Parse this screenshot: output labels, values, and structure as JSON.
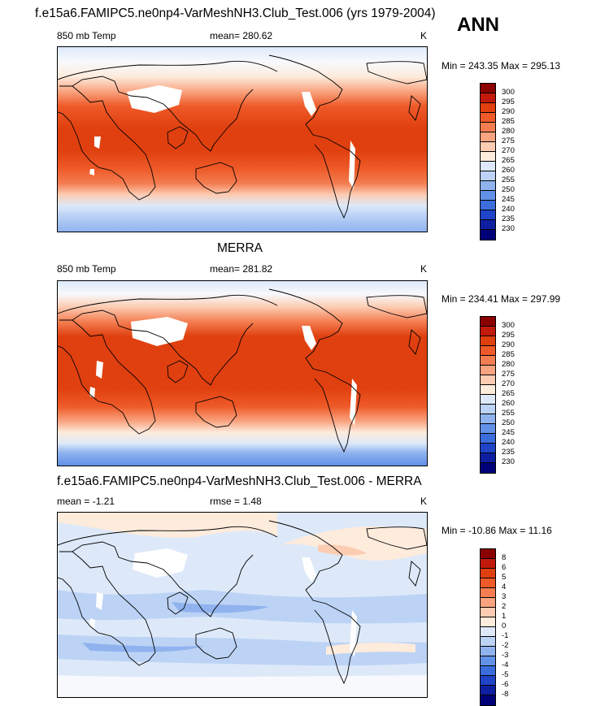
{
  "header": {
    "title": "f.e15a6.FAMIPC5.ne0np4-VarMeshNH3.Club_Test.006 (yrs 1979-2004)",
    "season": "ANN"
  },
  "panels": [
    {
      "title": "",
      "left_label": "850 mb Temp",
      "center_label": "mean= 280.62",
      "right_label": "K",
      "minmax": "Min = 243.35 Max = 295.13",
      "colorbar": {
        "labels": [
          "300",
          "295",
          "290",
          "285",
          "280",
          "275",
          "270",
          "265",
          "260",
          "255",
          "250",
          "245",
          "240",
          "235",
          "230"
        ],
        "colors": [
          "#8b0000",
          "#c21a0a",
          "#e0400f",
          "#ee5a28",
          "#f47e52",
          "#f9a481",
          "#fcccb2",
          "#fdebdc",
          "#dde9f9",
          "#bcd3f5",
          "#90b3ef",
          "#6291e8",
          "#3c6ddd",
          "#1f44c8",
          "#0d1fa0",
          "#000078"
        ]
      }
    },
    {
      "title": "MERRA",
      "left_label": "850 mb Temp",
      "center_label": "mean= 281.82",
      "right_label": "K",
      "minmax": "Min = 234.41 Max = 297.99",
      "colorbar": {
        "labels": [
          "300",
          "295",
          "290",
          "285",
          "280",
          "275",
          "270",
          "265",
          "260",
          "255",
          "250",
          "245",
          "240",
          "235",
          "230"
        ],
        "colors": [
          "#8b0000",
          "#c21a0a",
          "#e0400f",
          "#ee5a28",
          "#f47e52",
          "#f9a481",
          "#fcccb2",
          "#fdebdc",
          "#dde9f9",
          "#bcd3f5",
          "#90b3ef",
          "#6291e8",
          "#3c6ddd",
          "#1f44c8",
          "#0d1fa0",
          "#000078"
        ]
      }
    },
    {
      "title": "f.e15a6.FAMIPC5.ne0np4-VarMeshNH3.Club_Test.006 - MERRA",
      "left_label": "mean =  -1.21",
      "center_label": "rmse =   1.48",
      "right_label": "K",
      "minmax": "Min = -10.86 Max =  11.16",
      "colorbar": {
        "labels": [
          "8",
          "6",
          "5",
          "4",
          "3",
          "2",
          "1",
          "0",
          "-1",
          "-2",
          "-3",
          "-4",
          "-5",
          "-6",
          "-8"
        ],
        "colors": [
          "#8b0000",
          "#c21a0a",
          "#e0400f",
          "#ee5a28",
          "#f47e52",
          "#f9a481",
          "#fcccb2",
          "#fdebdc",
          "#dde9f9",
          "#bcd3f5",
          "#90b3ef",
          "#6291e8",
          "#3c6ddd",
          "#1f44c8",
          "#0d1fa0",
          "#000078"
        ]
      }
    }
  ]
}
